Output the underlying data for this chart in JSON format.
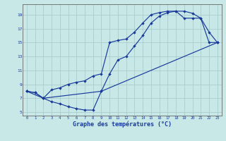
{
  "xlabel": "Graphe des températures (°C)",
  "background_color": "#c8e8e8",
  "grid_color": "#a8cccc",
  "line_color": "#1a3a9a",
  "xlim": [
    -0.5,
    23.5
  ],
  "ylim": [
    4.5,
    20.5
  ],
  "xticks": [
    0,
    1,
    2,
    3,
    4,
    5,
    6,
    7,
    8,
    9,
    10,
    11,
    12,
    13,
    14,
    15,
    16,
    17,
    18,
    19,
    20,
    21,
    22,
    23
  ],
  "yticks": [
    5,
    7,
    9,
    11,
    13,
    15,
    17,
    19
  ],
  "line1_x": [
    0,
    1,
    2,
    3,
    4,
    5,
    6,
    7,
    8,
    9,
    10,
    11,
    12,
    13,
    14,
    15,
    16,
    17,
    18,
    19,
    20,
    21,
    22,
    23
  ],
  "line1_y": [
    8.0,
    7.8,
    7.0,
    6.5,
    6.2,
    5.8,
    5.5,
    5.3,
    5.3,
    8.0,
    10.5,
    12.5,
    13.0,
    14.5,
    16.0,
    17.8,
    18.8,
    19.3,
    19.5,
    19.5,
    19.2,
    18.5,
    15.0,
    15.0
  ],
  "line2_x": [
    0,
    1,
    2,
    3,
    4,
    5,
    6,
    7,
    8,
    9,
    10,
    11,
    12,
    13,
    14,
    15,
    16,
    17,
    18,
    19,
    20,
    21,
    22,
    23
  ],
  "line2_y": [
    8.0,
    7.8,
    7.0,
    8.2,
    8.5,
    9.0,
    9.3,
    9.5,
    10.2,
    10.5,
    15.0,
    15.3,
    15.5,
    16.5,
    17.8,
    19.0,
    19.3,
    19.5,
    19.5,
    18.5,
    18.5,
    18.5,
    16.5,
    15.0
  ],
  "line3_x": [
    0,
    2,
    9,
    23
  ],
  "line3_y": [
    8.0,
    7.0,
    8.0,
    15.0
  ]
}
